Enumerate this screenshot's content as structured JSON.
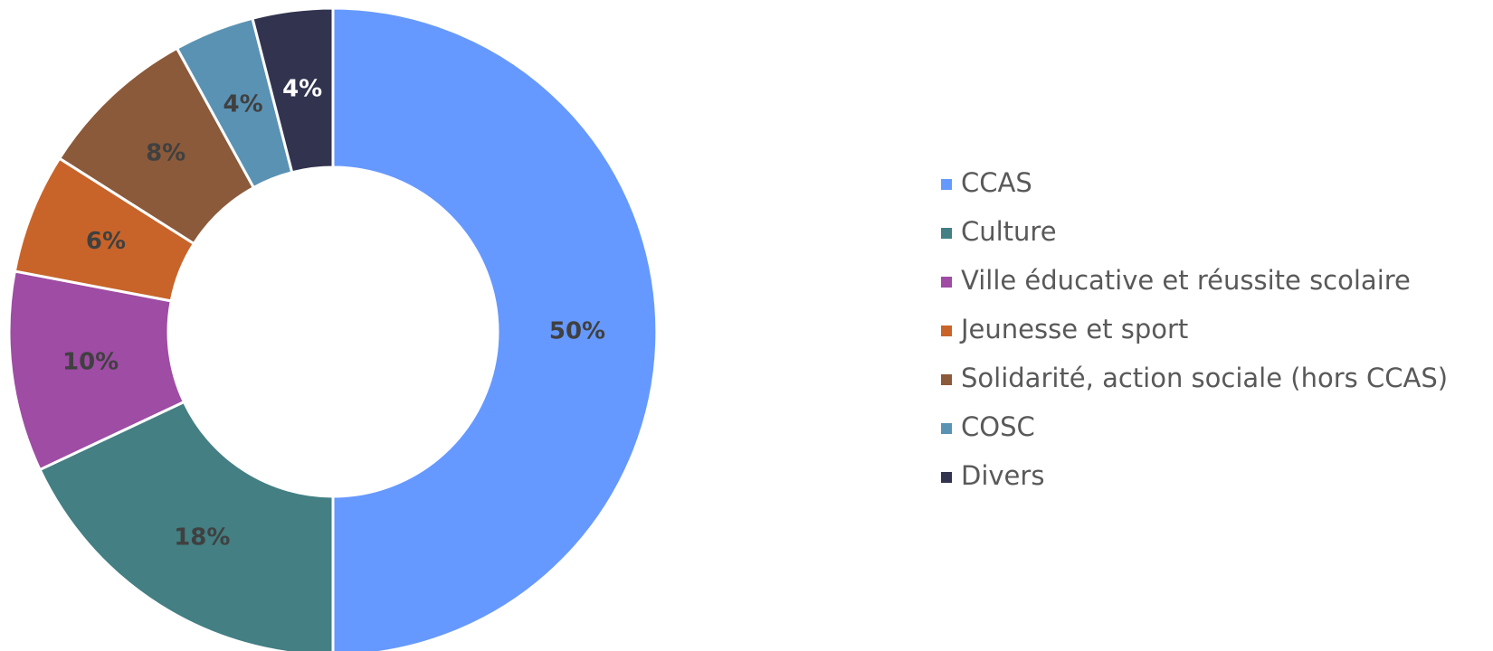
{
  "chart_data": {
    "type": "donut",
    "categories": [
      "CCAS",
      "Culture",
      "Ville éducative et réussite scolaire",
      "Jeunesse et sport",
      "Solidarité, action sociale (hors CCAS)",
      "COSC",
      "Divers"
    ],
    "values": [
      50,
      18,
      10,
      6,
      8,
      4,
      4
    ],
    "value_labels": [
      "50%",
      "18%",
      "10%",
      "6%",
      "8%",
      "4%",
      "4%"
    ],
    "colors": [
      "#6699ff",
      "#437f83",
      "#9e4ca4",
      "#c8642a",
      "#8b5a3a",
      "#5a92b4",
      "#32334f"
    ],
    "legend": "right"
  }
}
